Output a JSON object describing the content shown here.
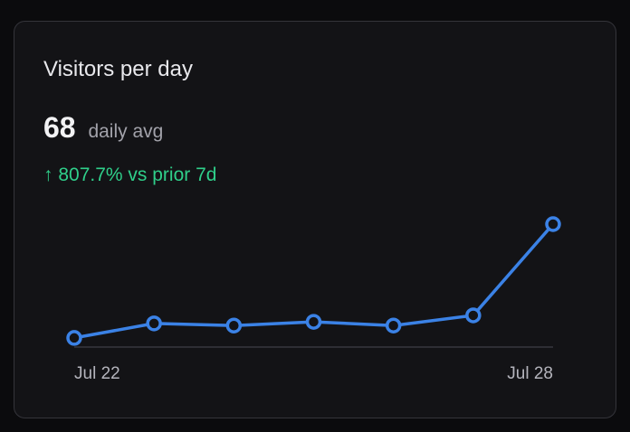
{
  "chart_data": {
    "type": "line",
    "title": "Visitors per day",
    "stat_value": 68,
    "stat_label": "daily avg",
    "change": "↑ 807.7% vs prior 7d",
    "categories": [
      "Jul 22",
      null,
      null,
      null,
      null,
      null,
      "Jul 28"
    ],
    "values": [
      17,
      44,
      40,
      47,
      40,
      59,
      229
    ],
    "color": "#3b82e6",
    "ylim": [
      0,
      229
    ]
  }
}
